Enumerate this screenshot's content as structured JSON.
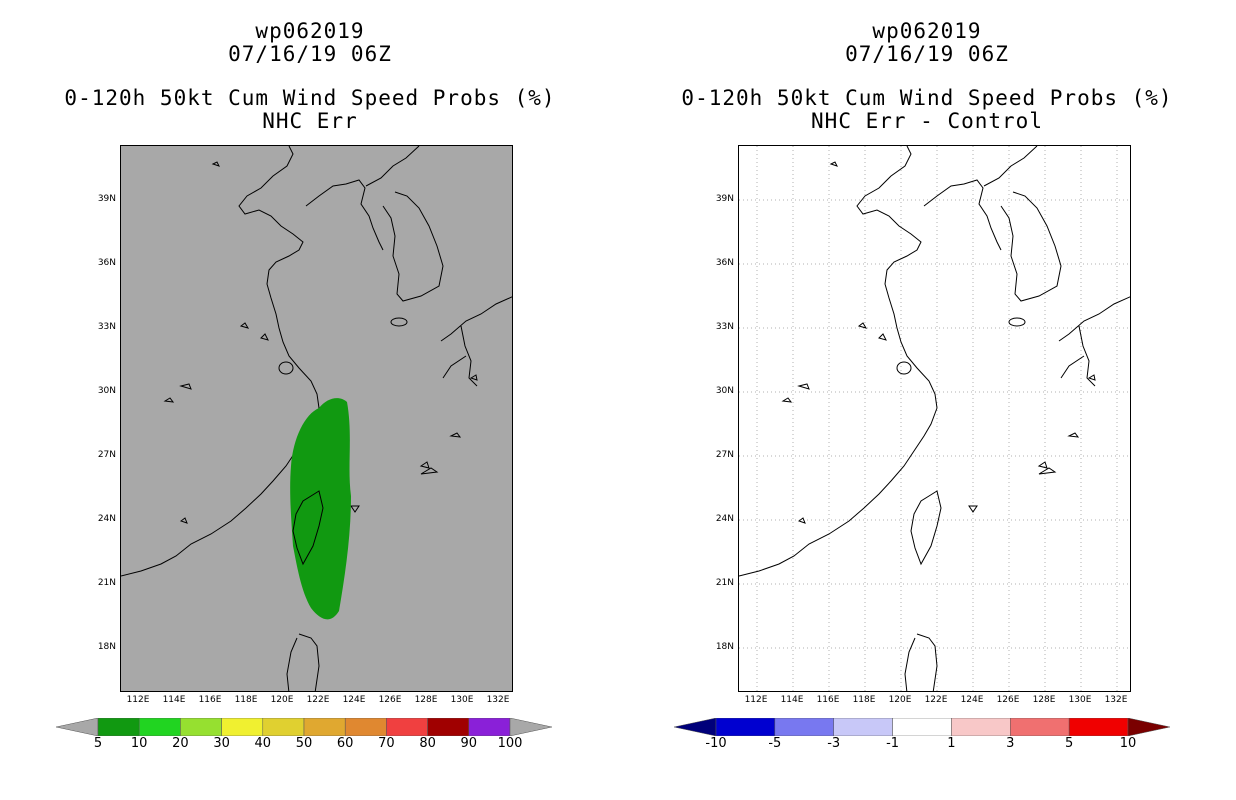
{
  "left_panel": {
    "title_line1": "wp062019",
    "title_line2": "07/16/19 06Z",
    "title_line3": "0-120h 50kt Cum Wind Speed Probs (%)",
    "title_line4": "NHC Err",
    "background_color": "#a8a8a8",
    "probability_fill_color": "#119911",
    "colorbar": {
      "labels": [
        "5",
        "10",
        "20",
        "30",
        "40",
        "50",
        "60",
        "70",
        "80",
        "90",
        "100"
      ],
      "colors": [
        "#119911",
        "#21d421",
        "#96e030",
        "#f0f030",
        "#e0d030",
        "#e0a830",
        "#e08830",
        "#f04040",
        "#a00000",
        "#8a20d8"
      ],
      "under_color": "#a8a8a8",
      "over_color": "#a8a8a8"
    }
  },
  "right_panel": {
    "title_line1": "wp062019",
    "title_line2": "07/16/19 06Z",
    "title_line3": "0-120h 50kt Cum Wind Speed Probs (%)",
    "title_line4": "NHC Err - Control",
    "background_color": "#ffffff",
    "colorbar": {
      "labels": [
        "-10",
        "-5",
        "-3",
        "-1",
        "1",
        "3",
        "5",
        "10"
      ],
      "colors": [
        "#0000d0",
        "#7878f0",
        "#c8c8f8",
        "#ffffff",
        "#f8c8c8",
        "#f07070",
        "#f00000"
      ],
      "under_color": "#00007a",
      "over_color": "#7a0000"
    }
  },
  "map": {
    "lat_labels": [
      "39N",
      "36N",
      "33N",
      "30N",
      "27N",
      "24N",
      "21N",
      "18N"
    ],
    "lon_labels": [
      "112E",
      "114E",
      "116E",
      "118E",
      "120E",
      "122E",
      "124E",
      "126E",
      "128E",
      "130E",
      "132E"
    ]
  }
}
